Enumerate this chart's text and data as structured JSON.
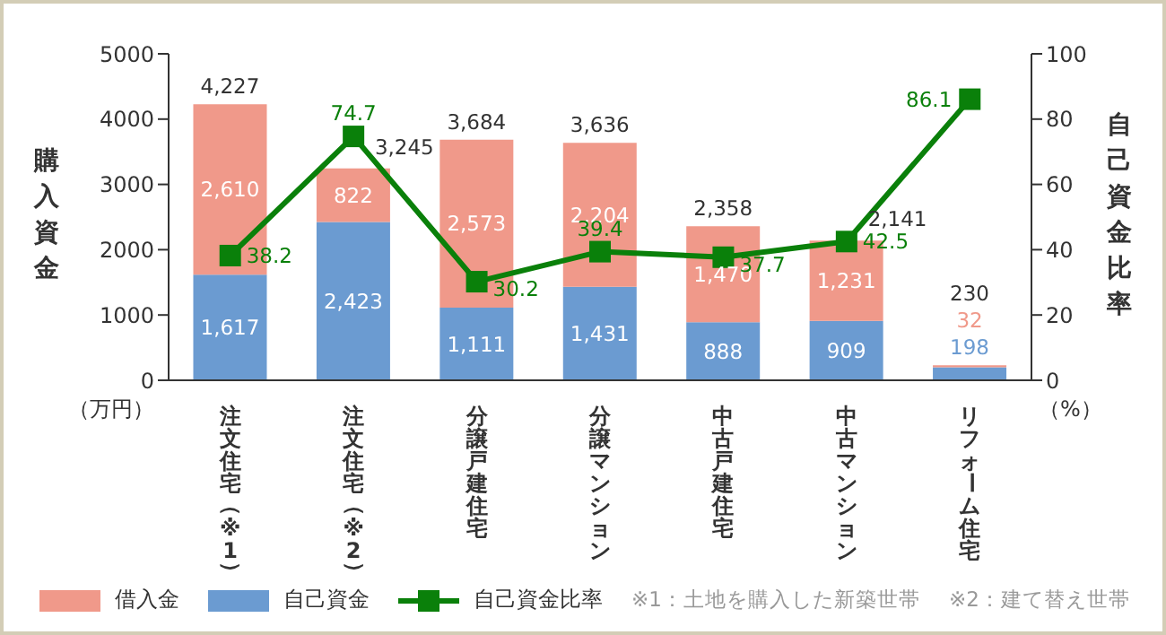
{
  "chart_data": {
    "type": "bar",
    "stacked": true,
    "ylabel": "購入資金",
    "y2label": "自己資金比率",
    "categories": [
      "注文住宅（※1）",
      "注文住宅（※2）",
      "分譲戸建住宅",
      "分譲マンション",
      "中古戸建住宅",
      "中古マンション",
      "リフォーム住宅"
    ],
    "series": [
      {
        "name": "自己資金",
        "color": "#6b9bd1",
        "values": [
          1617,
          2423,
          1111,
          1431,
          888,
          909,
          198
        ],
        "value_labels": [
          "1,617",
          "2,423",
          "1,111",
          "1,431",
          "888",
          "909",
          "198"
        ]
      },
      {
        "name": "借入金",
        "color": "#f0998a",
        "values": [
          2610,
          822,
          2573,
          2204,
          1470,
          1231,
          32
        ],
        "value_labels": [
          "2,610",
          "822",
          "2,573",
          "2,204",
          "1,470",
          "1,231",
          "32"
        ]
      },
      {
        "name": "自己資金比率",
        "type": "line",
        "axis": "y2",
        "color": "#0a800a",
        "marker": "square",
        "values": [
          38.2,
          74.7,
          30.2,
          39.4,
          37.7,
          42.5,
          86.1
        ]
      }
    ],
    "totals": [
      "4,227",
      "3,245",
      "3,684",
      "3,636",
      "2,358",
      "2,141",
      "230"
    ],
    "data_labels": true,
    "ylim": [
      0,
      5000
    ],
    "yticks": [
      0,
      1000,
      2000,
      3000,
      4000,
      5000
    ],
    "y2lim": [
      0,
      100
    ],
    "y2ticks": [
      0,
      20,
      40,
      60,
      80,
      100
    ],
    "grid": false,
    "legend": "bottom",
    "annotations": [
      "（万円）",
      "（%）",
      "※1：土地を購入した新築世帯",
      "※2：建て替え世帯"
    ]
  }
}
